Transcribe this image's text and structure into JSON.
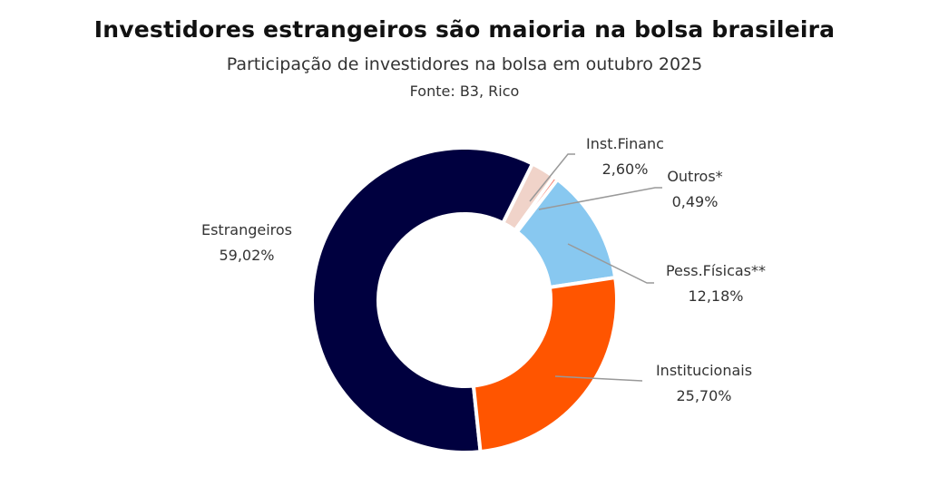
{
  "chart_data": {
    "type": "pie",
    "donut": true,
    "title": "Investidores estrangeiros são maioria na bolsa brasileira",
    "subtitle": "Participação de investidores na bolsa em outubro 2025",
    "source": "Fonte: B3, Rico",
    "slices": [
      {
        "label": "Estrangeiros",
        "value": 59.02,
        "value_label": "59,02%",
        "color": "#00003F"
      },
      {
        "label": "Inst.Financ",
        "value": 2.6,
        "value_label": "2,60%",
        "color": "#F0D3C9"
      },
      {
        "label": "Outros*",
        "value": 0.49,
        "value_label": "0,49%",
        "color": "#F47A6A"
      },
      {
        "label": "Pess.Físicas**",
        "value": 12.18,
        "value_label": "12,18%",
        "color": "#88C8F0"
      },
      {
        "label": "Institucionais",
        "value": 25.7,
        "value_label": "25,70%",
        "color": "#FF5500"
      }
    ]
  }
}
